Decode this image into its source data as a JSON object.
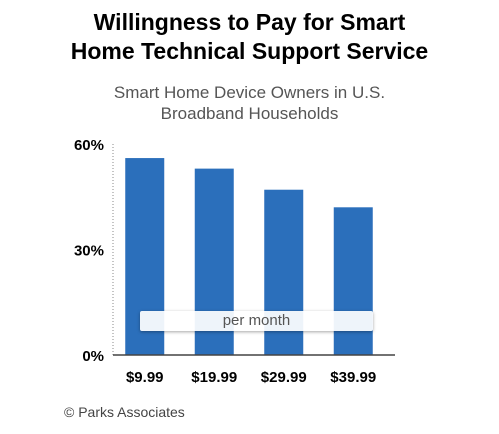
{
  "title_line1": "Willingness to Pay for Smart",
  "title_line2": "Home Technical Support Service",
  "subtitle_line1": "Smart Home Device Owners in U.S.",
  "subtitle_line2": "Broadband Households",
  "note": "per month",
  "credit": "© Parks Associates",
  "chart_data": {
    "type": "bar",
    "categories": [
      "$9.99",
      "$19.99",
      "$29.99",
      "$39.99"
    ],
    "values": [
      56,
      53,
      47,
      42
    ],
    "ylim": [
      0,
      60
    ],
    "yticks": [
      0,
      30,
      60
    ],
    "ytick_labels": [
      "0%",
      "30%",
      "60%"
    ],
    "bar_color": "#2b6fbb",
    "grid": false
  }
}
